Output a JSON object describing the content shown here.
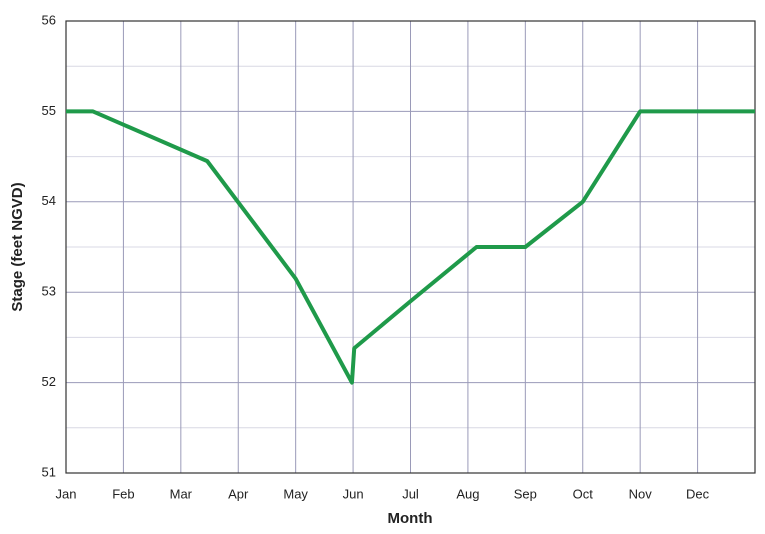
{
  "chart_data": {
    "type": "line",
    "x_label": "Month",
    "y_label": "Stage (feet NGVD)",
    "x": [
      0,
      0.47,
      2.46,
      4.0,
      4.98,
      5.02,
      6.0,
      7.15,
      8.0,
      9.0,
      10.0,
      12.0
    ],
    "series": [
      {
        "color": "#1f9a4a",
        "values": [
          55,
          55,
          54.45,
          53.15,
          52.0,
          52.38,
          52.9,
          53.5,
          53.5,
          54.0,
          55,
          55
        ]
      }
    ],
    "xlim": [
      0,
      12
    ],
    "xticks": [
      {
        "value": 0,
        "label": "Jan"
      },
      {
        "value": 1,
        "label": "Feb"
      },
      {
        "value": 2,
        "label": "Mar"
      },
      {
        "value": 3,
        "label": "Apr"
      },
      {
        "value": 4,
        "label": "May"
      },
      {
        "value": 5,
        "label": "Jun"
      },
      {
        "value": 6,
        "label": "Jul"
      },
      {
        "value": 7,
        "label": "Aug"
      },
      {
        "value": 8,
        "label": "Sep"
      },
      {
        "value": 9,
        "label": "Oct"
      },
      {
        "value": 10,
        "label": "Nov"
      },
      {
        "value": 11,
        "label": "Dec"
      }
    ],
    "ylim": [
      51,
      56
    ],
    "yticks": [
      51,
      52,
      53,
      54,
      55,
      56
    ],
    "yminor": [
      51.5,
      52.5,
      53.5,
      54.5,
      55.5
    ],
    "grid": true
  }
}
